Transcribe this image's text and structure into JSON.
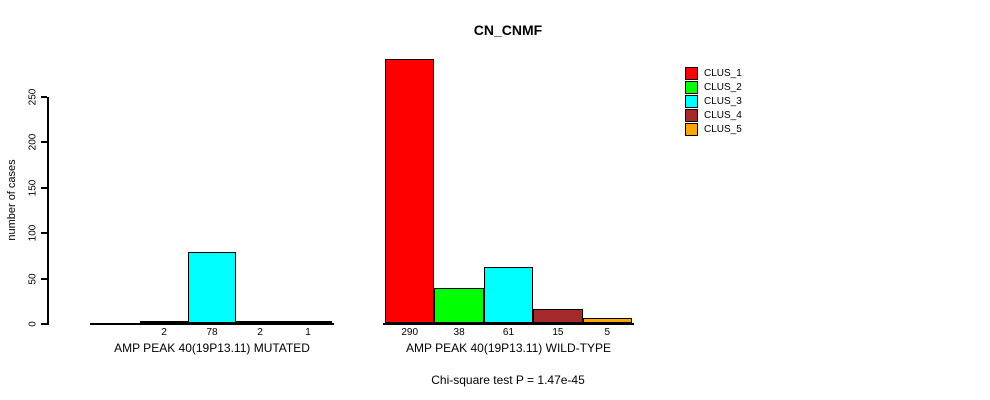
{
  "title": "CN_CNMF",
  "footer": "Chi-square test P = 1.47e-45",
  "chart_data": {
    "type": "bar",
    "title": "CN_CNMF",
    "xlabel": "",
    "ylabel": "number of cases",
    "ylim": [
      0,
      290
    ],
    "yticks": [
      0,
      50,
      100,
      150,
      200,
      250
    ],
    "grid": false,
    "legend_position": "right",
    "series_names": [
      "CLUS_1",
      "CLUS_2",
      "CLUS_3",
      "CLUS_4",
      "CLUS_5"
    ],
    "series_colors": [
      "#FF0000",
      "#00FF00",
      "#00FFFF",
      "#A52A2A",
      "#FFA500"
    ],
    "groups": [
      {
        "label": "AMP PEAK 40(19P13.11) MUTATED",
        "values": [
          0,
          2,
          78,
          2,
          1
        ],
        "bar_labels": [
          "",
          "2",
          "78",
          "2",
          "1"
        ]
      },
      {
        "label": "AMP PEAK 40(19P13.11) WILD-TYPE",
        "values": [
          290,
          38,
          61,
          15,
          5
        ],
        "bar_labels": [
          "290",
          "38",
          "61",
          "15",
          "5"
        ]
      }
    ],
    "annotation": "Chi-square test P = 1.47e-45"
  }
}
